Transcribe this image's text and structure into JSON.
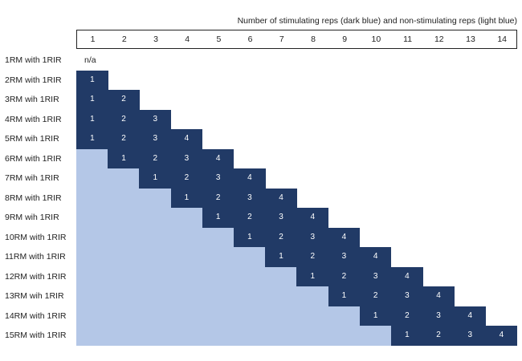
{
  "title": "Number of stimulating reps (dark blue) and non-stimulating reps (light blue)",
  "columns": [
    "1",
    "2",
    "3",
    "4",
    "5",
    "6",
    "7",
    "8",
    "9",
    "10",
    "11",
    "12",
    "13",
    "14"
  ],
  "colors": {
    "stimulating": "#213a66",
    "non_stimulating": "#b4c7e7"
  },
  "rows": [
    {
      "label": "1RM with 1RIR",
      "stimulating": 0,
      "non_stimulating": 0,
      "note": "n/a"
    },
    {
      "label": "2RM with 1RIR",
      "stimulating": 1,
      "non_stimulating": 0
    },
    {
      "label": "3RM wih 1RIR",
      "stimulating": 2,
      "non_stimulating": 0
    },
    {
      "label": "4RM with 1RIR",
      "stimulating": 3,
      "non_stimulating": 0
    },
    {
      "label": "5RM wih 1RIR",
      "stimulating": 4,
      "non_stimulating": 0
    },
    {
      "label": "6RM with 1RIR",
      "stimulating": 4,
      "non_stimulating": 1
    },
    {
      "label": "7RM wih 1RIR",
      "stimulating": 4,
      "non_stimulating": 2
    },
    {
      "label": "8RM with 1RIR",
      "stimulating": 4,
      "non_stimulating": 3
    },
    {
      "label": "9RM wih 1RIR",
      "stimulating": 4,
      "non_stimulating": 4
    },
    {
      "label": "10RM with 1RIR",
      "stimulating": 4,
      "non_stimulating": 5
    },
    {
      "label": "11RM with 1RIR",
      "stimulating": 4,
      "non_stimulating": 6
    },
    {
      "label": "12RM with 1RIR",
      "stimulating": 4,
      "non_stimulating": 7
    },
    {
      "label": "13RM wih 1RIR",
      "stimulating": 4,
      "non_stimulating": 8
    },
    {
      "label": "14RM with 1RIR",
      "stimulating": 4,
      "non_stimulating": 9
    },
    {
      "label": "15RM with 1RIR",
      "stimulating": 4,
      "non_stimulating": 10
    }
  ]
}
